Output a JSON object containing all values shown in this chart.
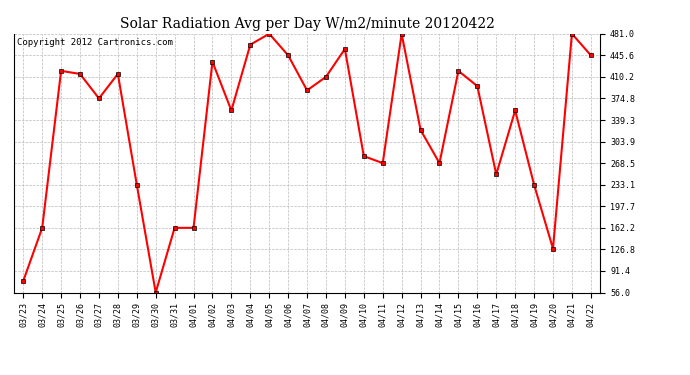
{
  "title": "Solar Radiation Avg per Day W/m2/minute 20120422",
  "copyright": "Copyright 2012 Cartronics.com",
  "dates": [
    "03/23",
    "03/24",
    "03/25",
    "03/26",
    "03/27",
    "03/28",
    "03/29",
    "03/30",
    "03/31",
    "04/01",
    "04/02",
    "04/03",
    "04/04",
    "04/05",
    "04/06",
    "04/07",
    "04/08",
    "04/09",
    "04/10",
    "04/11",
    "04/12",
    "04/13",
    "04/14",
    "04/15",
    "04/16",
    "04/17",
    "04/18",
    "04/19",
    "04/20",
    "04/21",
    "04/22"
  ],
  "values": [
    75.0,
    162.0,
    420.0,
    415.0,
    374.8,
    415.0,
    233.1,
    56.0,
    162.2,
    162.2,
    435.0,
    355.0,
    463.0,
    481.0,
    445.6,
    388.0,
    410.2,
    456.0,
    280.0,
    268.5,
    481.0,
    323.0,
    268.5,
    420.0,
    395.0,
    250.0,
    355.0,
    233.1,
    128.0,
    481.0,
    445.6
  ],
  "ylim": [
    56.0,
    481.0
  ],
  "yticks": [
    56.0,
    91.4,
    126.8,
    162.2,
    197.7,
    233.1,
    268.5,
    303.9,
    339.3,
    374.8,
    410.2,
    445.6,
    481.0
  ],
  "line_color": "red",
  "marker": "s",
  "marker_size": 2.5,
  "marker_edge_color": "#000000",
  "marker_edge_width": 0.5,
  "bg_color": "white",
  "grid_color": "#bbbbbb",
  "grid_linestyle": "--",
  "grid_linewidth": 0.5,
  "line_width": 1.5,
  "title_fontsize": 10,
  "copyright_fontsize": 6.5,
  "tick_fontsize": 6,
  "figwidth": 6.9,
  "figheight": 3.75,
  "dpi": 100
}
